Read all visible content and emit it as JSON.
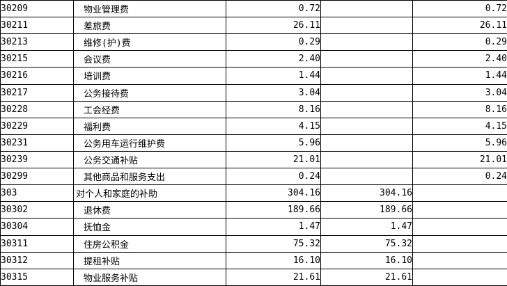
{
  "table": {
    "rows": [
      {
        "code": "30209",
        "name": "物业管理费",
        "indent": true,
        "v1": "0.72",
        "v2": "",
        "v3": "0.72"
      },
      {
        "code": "30211",
        "name": "差旅费",
        "indent": true,
        "v1": "26.11",
        "v2": "",
        "v3": "26.11"
      },
      {
        "code": "30213",
        "name": "维修(护)费",
        "indent": true,
        "v1": "0.29",
        "v2": "",
        "v3": "0.29"
      },
      {
        "code": "30215",
        "name": "会议费",
        "indent": true,
        "v1": "2.40",
        "v2": "",
        "v3": "2.40"
      },
      {
        "code": "30216",
        "name": "培训费",
        "indent": true,
        "v1": "1.44",
        "v2": "",
        "v3": "1.44"
      },
      {
        "code": "30217",
        "name": "公务接待费",
        "indent": true,
        "v1": "3.04",
        "v2": "",
        "v3": "3.04"
      },
      {
        "code": "30228",
        "name": "工会经费",
        "indent": true,
        "v1": "8.16",
        "v2": "",
        "v3": "8.16"
      },
      {
        "code": "30229",
        "name": "福利费",
        "indent": true,
        "v1": "4.15",
        "v2": "",
        "v3": "4.15"
      },
      {
        "code": "30231",
        "name": "公务用车运行维护费",
        "indent": true,
        "v1": "5.96",
        "v2": "",
        "v3": "5.96"
      },
      {
        "code": "30239",
        "name": "公务交通补贴",
        "indent": true,
        "v1": "21.01",
        "v2": "",
        "v3": "21.01"
      },
      {
        "code": "30299",
        "name": "其他商品和服务支出",
        "indent": true,
        "v1": "0.24",
        "v2": "",
        "v3": "0.24"
      },
      {
        "code": "303",
        "name": "对个人和家庭的补助",
        "indent": false,
        "v1": "304.16",
        "v2": "304.16",
        "v3": ""
      },
      {
        "code": "30302",
        "name": "退休费",
        "indent": true,
        "v1": "189.66",
        "v2": "189.66",
        "v3": ""
      },
      {
        "code": "30304",
        "name": "抚恤金",
        "indent": true,
        "v1": "1.47",
        "v2": "1.47",
        "v3": ""
      },
      {
        "code": "30311",
        "name": "住房公积金",
        "indent": true,
        "v1": "75.32",
        "v2": "75.32",
        "v3": ""
      },
      {
        "code": "30312",
        "name": "提租补贴",
        "indent": true,
        "v1": "16.10",
        "v2": "16.10",
        "v3": ""
      },
      {
        "code": "30315",
        "name": "物业服务补贴",
        "indent": true,
        "v1": "21.61",
        "v2": "21.61",
        "v3": ""
      }
    ]
  }
}
